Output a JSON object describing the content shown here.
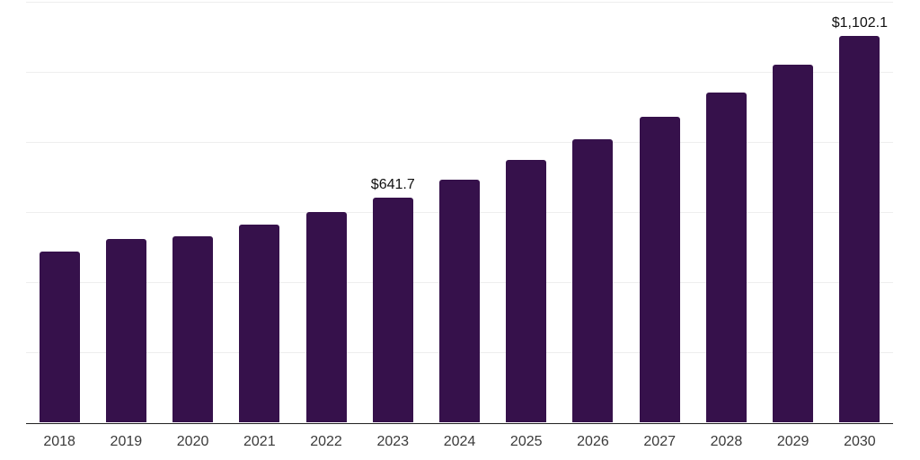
{
  "chart_data": {
    "type": "bar",
    "title": "",
    "xlabel": "",
    "ylabel": "",
    "legend": "none",
    "categories": [
      "2018",
      "2019",
      "2020",
      "2021",
      "2022",
      "2023",
      "2024",
      "2025",
      "2026",
      "2027",
      "2028",
      "2029",
      "2030"
    ],
    "values": [
      487,
      522,
      530,
      564,
      599,
      641.7,
      693,
      749,
      806,
      871,
      940,
      1020,
      1102.1
    ],
    "annotations": [
      {
        "category": "2023",
        "text": "$641.7"
      },
      {
        "category": "2030",
        "text": "$1,102.1"
      }
    ],
    "ylim": [
      0,
      1200
    ],
    "gridline_values": [
      200,
      400,
      600,
      800,
      1000,
      1200
    ],
    "grid": "horizontal only, no y-axis tick labels",
    "colors": {
      "bar": "#36114B",
      "gridline": "#eeeeee",
      "axis_line": "#222222",
      "data_label": "#111111",
      "tick_label": "#3a3a3a",
      "background": "#ffffff"
    }
  }
}
